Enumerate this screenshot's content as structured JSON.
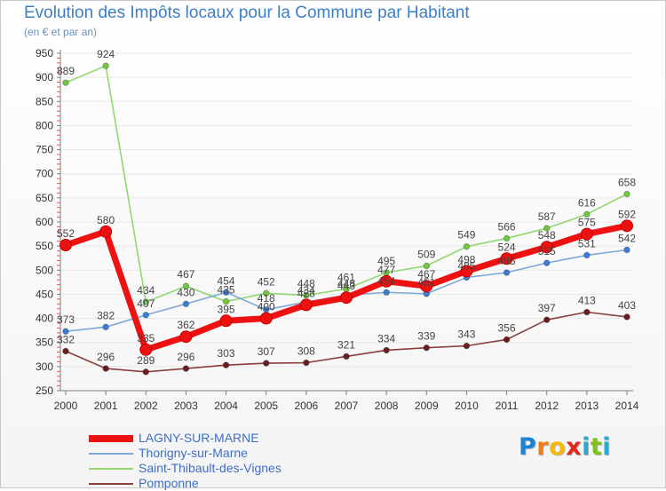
{
  "colors": {
    "axis": "#808080",
    "grid": "#e8e8e8",
    "tick_label": "#333333",
    "data_label": "#444444",
    "title": "#3c7fc6",
    "legend_text": "#3f6ec8"
  },
  "chart_data": {
    "type": "line",
    "title": "Evolution des Impôts locaux pour la Commune par Habitant",
    "subtitle": "(en € et par an)",
    "xlabel": "",
    "ylabel": "",
    "x": [
      "2000",
      "2001",
      "2002",
      "2003",
      "2004",
      "2005",
      "2006",
      "2007",
      "2008",
      "2009",
      "2010",
      "2011",
      "2012",
      "2013",
      "2014"
    ],
    "ylim": [
      250,
      950
    ],
    "yticks": [
      "250",
      "300",
      "350",
      "400",
      "450",
      "500",
      "550",
      "600",
      "650",
      "700",
      "750",
      "800",
      "850",
      "900",
      "950"
    ],
    "grid": true,
    "series": [
      {
        "name": "LAGNY-SUR-MARNE",
        "color": "#ee1111",
        "marker": "#ee1111",
        "values": [
          552,
          580,
          335,
          362,
          395,
          400,
          428,
          443,
          477,
          467,
          498,
          524,
          548,
          575,
          592
        ],
        "labels": [
          "552",
          "580",
          "335",
          "362",
          "395",
          "400",
          "428",
          "443",
          "477",
          "467",
          "498",
          "524",
          "548",
          "575",
          "592"
        ]
      },
      {
        "name": "Thorigny-sur-Marne",
        "color": "#7fa7d8",
        "marker": "#3b7dd6",
        "values": [
          373,
          382,
          407,
          430,
          454,
          418,
          434,
          448,
          454,
          451,
          485,
          495,
          515,
          531,
          542
        ],
        "labels": [
          "373",
          "382",
          "407",
          "430",
          "454",
          "418",
          "434",
          "448",
          "454",
          "451",
          "485",
          "495",
          "515",
          "531",
          "542"
        ]
      },
      {
        "name": "Saint-Thibault-des-Vignes",
        "color": "#90d870",
        "marker": "#72c840",
        "values": [
          889,
          924,
          434,
          467,
          435,
          452,
          448,
          461,
          495,
          509,
          549,
          566,
          587,
          616,
          658
        ],
        "labels": [
          "889",
          "924",
          "434",
          "467",
          "435",
          "452",
          "448",
          "461",
          "495",
          "509",
          "549",
          "566",
          "587",
          "616",
          "658"
        ]
      },
      {
        "name": "Pomponne",
        "color": "#8a3f3f",
        "marker": "#6b1e1e",
        "values": [
          332,
          296,
          289,
          296,
          303,
          307,
          308,
          321,
          334,
          339,
          343,
          356,
          397,
          413,
          403
        ],
        "labels": [
          "332",
          "296",
          "289",
          "296",
          "303",
          "307",
          "308",
          "321",
          "334",
          "339",
          "343",
          "356",
          "397",
          "413",
          "403"
        ]
      }
    ]
  },
  "brand": {
    "letters": [
      "P",
      "r",
      "o",
      "x",
      "i",
      "t",
      "i"
    ],
    "colors": [
      "#1a83d6",
      "#f07c1a",
      "#f5b80c",
      "#e5261a",
      "#2aa8d9",
      "#83c11f",
      "#2aa8d9"
    ]
  }
}
